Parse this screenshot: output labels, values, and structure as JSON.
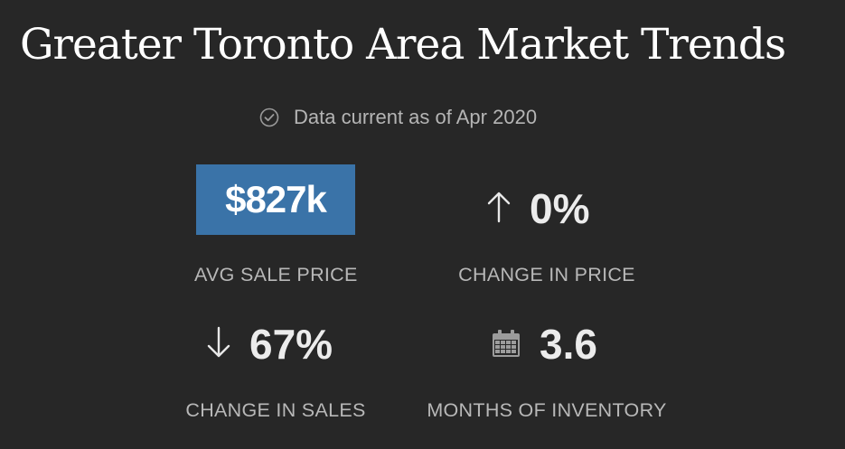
{
  "header": {
    "title": "Greater Toronto Area Market Trends",
    "current_text": "Data current as of Apr 2020"
  },
  "stats": {
    "avg_sale_price": {
      "value": "$827k",
      "label": "AVG SALE PRICE"
    },
    "change_in_price": {
      "value": "0%",
      "label": "CHANGE IN PRICE",
      "direction_icon": "arrow-up-icon"
    },
    "change_in_sales": {
      "value": "67%",
      "label": "CHANGE IN SALES",
      "direction_icon": "arrow-down-icon"
    },
    "months_of_inventory": {
      "value": "3.6",
      "label": "MONTHS OF INVENTORY",
      "icon": "calendar-icon"
    }
  },
  "colors": {
    "background": "#272727",
    "accent": "#3a73a8",
    "text_primary": "#ececec",
    "text_secondary": "#b8b8b8"
  }
}
